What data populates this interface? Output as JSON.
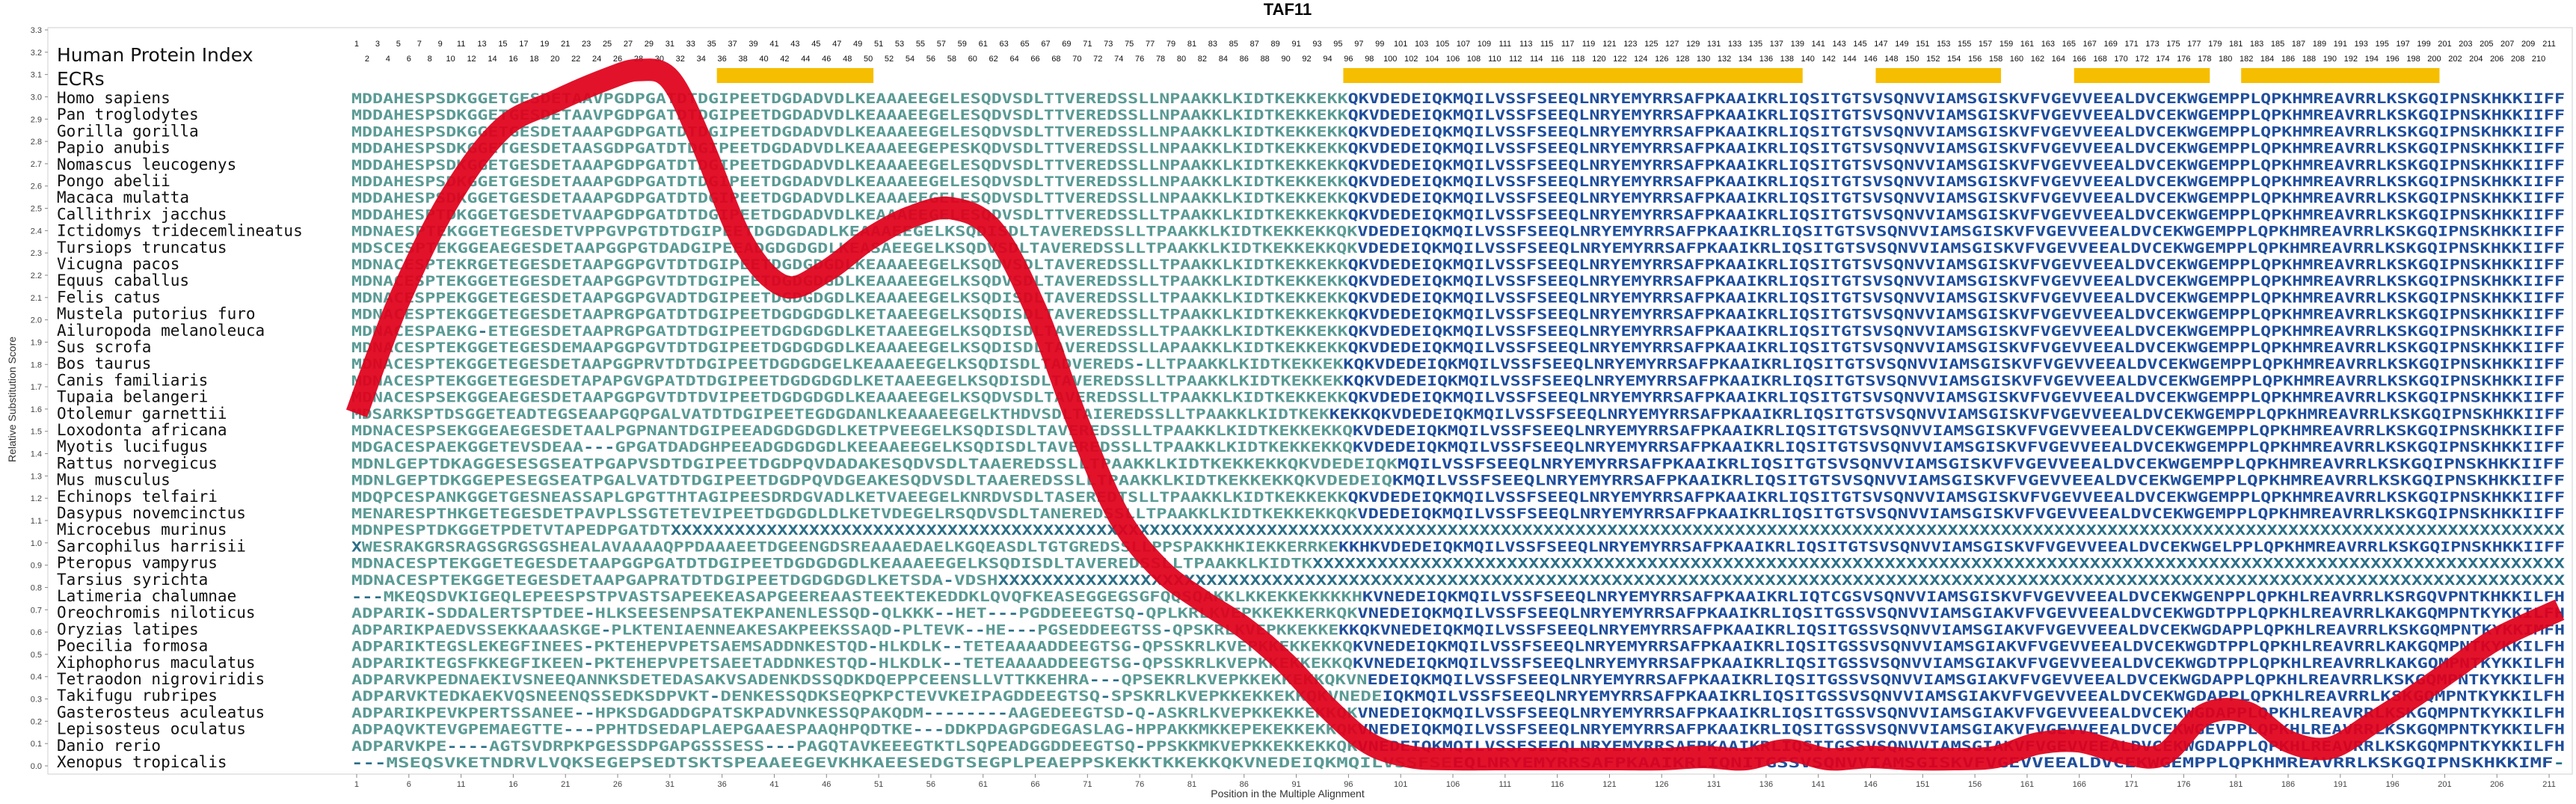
{
  "chart_data": {
    "type": "line",
    "title": "TAF11",
    "xlabel": "Position in the Multiple Alignment",
    "ylabel": "Relative Substitution Score",
    "xlim": [
      1,
      212
    ],
    "ylim": [
      0.0,
      3.3
    ],
    "x_ticks": [
      "1",
      "6",
      "11",
      "16",
      "21",
      "26",
      "31",
      "36",
      "41",
      "46",
      "51",
      "56",
      "61",
      "66",
      "71",
      "76",
      "81",
      "86",
      "91",
      "96",
      "101",
      "106",
      "111",
      "116",
      "121",
      "126",
      "131",
      "136",
      "141",
      "146",
      "151",
      "156",
      "161",
      "166",
      "171",
      "176",
      "181",
      "186",
      "191",
      "196",
      "201",
      "206",
      "211"
    ],
    "y_ticks": [
      "0.0",
      "0.1",
      "0.2",
      "0.3",
      "0.4",
      "0.5",
      "0.6",
      "0.7",
      "0.8",
      "0.9",
      "1.0",
      "1.1",
      "1.2",
      "1.3",
      "1.4",
      "1.5",
      "1.6",
      "1.7",
      "1.8",
      "1.9",
      "2.0",
      "2.1",
      "2.2",
      "2.3",
      "2.4",
      "2.5",
      "2.6",
      "2.7",
      "2.8",
      "2.9",
      "3.0",
      "3.1",
      "3.2",
      "3.3"
    ],
    "grid": false,
    "line_color": "#e0001b",
    "series": [
      {
        "x": [
          1,
          5,
          10,
          15,
          20,
          25,
          28,
          31,
          34,
          38,
          42,
          46,
          50,
          54,
          58,
          62,
          66,
          70,
          74,
          78,
          82,
          86,
          90,
          94,
          98,
          102,
          106,
          110,
          114,
          118,
          122,
          126,
          130,
          134,
          138,
          142,
          146,
          150,
          154,
          158,
          162,
          166,
          170,
          174,
          178,
          182,
          186,
          190,
          194,
          198,
          202,
          206,
          212
        ],
        "y": [
          1.58,
          2.08,
          2.55,
          2.86,
          2.98,
          3.08,
          3.12,
          3.08,
          2.8,
          2.35,
          2.15,
          2.22,
          2.36,
          2.46,
          2.5,
          2.4,
          2.05,
          1.55,
          1.12,
          0.88,
          0.74,
          0.62,
          0.46,
          0.26,
          0.1,
          0.04,
          0.03,
          0.03,
          0.03,
          0.03,
          0.03,
          0.03,
          0.04,
          0.03,
          0.07,
          0.03,
          0.04,
          0.03,
          0.03,
          0.04,
          0.1,
          0.11,
          0.06,
          0.05,
          0.23,
          0.24,
          0.11,
          0.08,
          0.19,
          0.31,
          0.44,
          0.57,
          0.7
        ]
      }
    ],
    "human_protein_index_row1": [
      "1",
      "3",
      "5",
      "7",
      "9",
      "11",
      "13",
      "15",
      "17",
      "19",
      "21",
      "23",
      "25",
      "27",
      "29",
      "31",
      "33",
      "35",
      "37",
      "39",
      "41",
      "43",
      "45",
      "47",
      "49",
      "51",
      "53",
      "55",
      "57",
      "59",
      "61",
      "63",
      "65",
      "67",
      "69",
      "71",
      "73",
      "75",
      "77",
      "79",
      "81",
      "83",
      "85",
      "87",
      "89",
      "91",
      "93",
      "95",
      "97",
      "99",
      "101",
      "103",
      "105",
      "107",
      "109",
      "111",
      "113",
      "115",
      "117",
      "119",
      "121",
      "123",
      "125",
      "127",
      "129",
      "131",
      "133",
      "135",
      "137",
      "139",
      "141",
      "143",
      "145",
      "147",
      "149",
      "151",
      "153",
      "155",
      "157",
      "159",
      "161",
      "163",
      "165",
      "167",
      "169",
      "171",
      "173",
      "175",
      "177",
      "179",
      "181",
      "183",
      "185",
      "187",
      "189",
      "191",
      "193",
      "195",
      "197",
      "199",
      "201",
      "203",
      "205",
      "207",
      "209",
      "211"
    ],
    "human_protein_index_row2": [
      "2",
      "4",
      "6",
      "8",
      "10",
      "12",
      "14",
      "16",
      "18",
      "20",
      "22",
      "24",
      "26",
      "28",
      "30",
      "32",
      "34",
      "36",
      "38",
      "40",
      "42",
      "44",
      "46",
      "48",
      "50",
      "52",
      "54",
      "56",
      "58",
      "60",
      "62",
      "64",
      "66",
      "68",
      "70",
      "72",
      "74",
      "76",
      "78",
      "80",
      "82",
      "84",
      "86",
      "88",
      "90",
      "92",
      "94",
      "96",
      "98",
      "100",
      "102",
      "104",
      "106",
      "108",
      "110",
      "112",
      "114",
      "116",
      "118",
      "120",
      "122",
      "124",
      "126",
      "128",
      "130",
      "132",
      "134",
      "136",
      "138",
      "140",
      "142",
      "144",
      "146",
      "148",
      "150",
      "152",
      "154",
      "156",
      "158",
      "160",
      "162",
      "164",
      "166",
      "168",
      "170",
      "172",
      "174",
      "176",
      "178",
      "180",
      "182",
      "184",
      "186",
      "188",
      "190",
      "192",
      "194",
      "196",
      "198",
      "200",
      "202",
      "204",
      "206",
      "208",
      "210"
    ],
    "ecr_regions": [
      [
        36,
        50
      ],
      [
        96,
        139
      ],
      [
        147,
        158
      ],
      [
        166,
        178
      ],
      [
        182,
        200
      ]
    ],
    "ecr_color": "#f6be00",
    "sequence_colors": {
      "conserved": "#1f4e9c",
      "variable": "#5a9a94",
      "gap": "#2b6f88"
    }
  },
  "labels": {
    "human_protein_index": "Human Protein Index",
    "ecrs": "ECRs"
  },
  "alignment": [
    {
      "species": "Homo sapiens",
      "seq": "MDDAHESPSDKGGETGESDETAAVPGDPGATDTDGIPEETDGDADVDLKEAAAEEGELESQDVSDLTTVEREDSSLLNPAAKKLKIDTKEKKEKKQKVDEDEIQKMQILVSSFSEEQLNRYEMYRRSAFPKAAIKRLIQSITGTSVSQNVVIAMSGISKVFVGEVVEEALDVCEKWGEMPPLQPKHMREAVRRLKSKGQIPNSKHKKIIFF"
    },
    {
      "species": "Pan troglodytes",
      "seq": "MDDAHESPSDKGGETGESDETAAVPGDPGATDTDGIPEETDGDADVDLKEAAAEEGELESQDVSDLTTVEREDSSLLNPAAKKLKIDTKEKKEKKQKVDEDEIQKMQILVSSFSEEQLNRYEMYRRSAFPKAAIKRLIQSITGTSVSQNVVIAMSGISKVFVGEVVEEALDVCEKWGEMPPLQPKHMREAVRRLKSKGQIPNSKHKKIIFF"
    },
    {
      "species": "Gorilla gorilla",
      "seq": "MDDAHESPSDKGGETGESDETAAAPGDPGATDTDGIPEETDGDADVDLKEAAAEEGELESQDVSDLTTVEREDSSLLNPAAKKLKIDTKEKKEKKQKVDEDEIQKMQILVSSFSEEQLNRYEMYRRSAFPKAAIKRLIQSITGTSVSQNVVIAMSGISKVFVGEVVEEALDVCEKWGEMPPLQPKHMREAVRRLKSKGQIPNSKHKKIIFF"
    },
    {
      "species": "Papio anubis",
      "seq": "MDDAHESPSDKGGETGESDETAASGDPGATDTDGIPEETDGDADVDLKEAAAEEGEPESKQDVSDLTTVEREDSSLLNPAAKKLKIDTKEKKEKKQKVDEDEIQKMQILVSSFSEEQLNRYEMYRRSAFPKAAIKRLIQSITGTSVSQNVVIAMSGISKVFVGEVVEEALDVCEKWGEMPPLQPKHMREAVRRLKSKGQIPNSKHKKIIFF"
    },
    {
      "species": "Nomascus leucogenys",
      "seq": "MDDAHESPSDKGGETGESDETAAAPGDPGATDTDGIPEETDGDADVDLKEAAAEEGELESQDVSDLTTVEREDSSLLNPAAKKLKIDTKEKKEKKQKVDEDEIQKMQILVSSFSEEQLNRYEMYRRSAFPKAAIKRLIQSITGTSVSQNVVIAMSGISKVFVGEVVEEALDVCEKWGEMPPLQPKHMREAVRRLKSKGQIPNSKHKKIIFF"
    },
    {
      "species": "Pongo abelii",
      "seq": "MDDAHESPSDKGGETGESDETAAAPGDPGATDTDGIPEETDGDADVDLKEAAAEEGELESQDVSDLTTVEREDSSLLNPAAKKLKIDTKEKKEKKQKVDEDEIQKMQILVSSFSEEQLNRYEMYRRSAFPKAAIKRLIQSITGTSVSQNVVIAMSGISKVFVGEVVEEALDVCEKWGEMPPLQPKHMREAVRRLKSKGQIPNSKHKKIIFF"
    },
    {
      "species": "Macaca mulatta",
      "seq": "MDDAHESPSDKGGETGESDETAAAPGDPGATDTDGIPEETDGDADVDLKEAAAEEGELESQDVSDLTTVEREDSSLLNPAAKKLKIDTKEKKEKKQKVDEDEIQKMQILVSSFSEEQLNRYEMYRRSAFPKAAIKRLIQSITGTSVSQNVVIAMSGISKVFVGEVVEEALDVCEKWGEMPPLQPKHMREAVRRLKSKGQIPNSKHKKIIFF"
    },
    {
      "species": "Callithrix jacchus",
      "seq": "MDDAHESPTDKGGETGESDETVAAPGDPGATDTDGIPEETDGDADVDLKEAAAEEGELESQDVSDLTTVEREDSSLLTPAAKKLKIDTKEKKEKKQKVDEDEIQKMQILVSSFSEEQLNRYEMYRRSAFPKAAIKRLIQSITGTSVSQNVVIAMSGISKVFVGEVVEEALDVCEKWGEMPPLQPKHMREAVRRLKSKGQIPNSKHKKIIFF"
    },
    {
      "species": "Ictidomys tridecemlineatus",
      "seq": "MDNAESPTEKGGETEGESDETVPPGVPGTDTDGIPEETDGDGDADLKEAAAEEGELKSQDISDLTAVEREDSSLLTPAAKKLKIDTKEKKEKKQKVDEDEIQKMQILVSSFSEEQLNRYEMYRRSAFPKAAIKRLIQSITGTSVSQNVVIAMSGISKVFVGEVVEEALDVCEKWGEMPPLQPKHMREAVRRLKSKGQIPNSKHKKIIFF"
    },
    {
      "species": "Tursiops truncatus",
      "seq": "MDSCESPTEKGGEAEGESDETAAPGGPGTDADGIPEEADGDGDGDLKEASAEEGELKSQDVSDLTAVEREDSSLLTPAAKKLKIDTKEKKEKKQKVDEDEIQKMQILVSSFSEEQLNRYEMYRRSAFPKAAIKRLIQSITGTSVSQNVVIAMSGISKVFVGEVVEEALDVCEKWGEMPPLQPKHMREAVRRLKSKGQIPNSKHKKIIFF"
    },
    {
      "species": "Vicugna pacos",
      "seq": "MDNACESPTEKRGETEGESDETAAPGGPGVTDTDGIPEETDGDGDGDLKEAAAEEGELKSQDVSDLTAVEREDSSLLTPAAKKLKIDTKEKKEKKQKVDEDEIQKMQILVSSFSEEQLNRYEMYRRSAFPKAAIKRLIQSITGTSVSQNVVIAMSGISKVFVGEVVEEALDVCEKWGEMPPLQPKHMREAVRRLKSKGQIPNSKHKKIIFF"
    },
    {
      "species": "Equus caballus",
      "seq": "MDNACESPTEKGGETEGESDETAAPGGPGVTDTDGIPEETDGDGDGDLKEAAAEEGELKSQDVSDLTAVEREDSSLLTPAAKKLKIDTKEKKEKKQKVDEDEIQKMQILVSSFSEEQLNRYEMYRRSAFPKAAIKRLIQSITGTSVSQNVVIAMSGISKVFVGEVVEEALDVCEKWGEMPPLQPKHMREAVRRLKSKGQIPNSKHKKIIFF"
    },
    {
      "species": "Felis catus",
      "seq": "MDNACESPPEKGGETEGESDETAAPGGPGVADTDGIPEETDGDGDGDLKEAAAEEGELKSQDISDLTAVEREDSSLLTPAAKKLKIDTKEKKEKKQKVDEDEIQKMQILVSSFSEEQLNRYEMYRRSAFPKAAIKRLIQSITGTSVSQNVVIAMSGISKVFVGEVVEEALDVCEKWGEMPPLQPKHMREAVRRLKSKGQIPNSKHKKIIFF"
    },
    {
      "species": "Mustela putorius furo",
      "seq": "MDNACESPTEKGGETEGESDETAAPRGPGATDTDGIPEETDGDGDGDLKETAAEEGELKSQDISDLTAVEREDSSLLTPAAKKLKIDTKEKKEKKQKVDEDEIQKMQILVSSFSEEQLNRYEMYRRSAFPKAAIKRLIQSITGTSVSQNVVIAMSGISKVFVGEVVEEALDVCEKWGEMPPLQPKHMREAVRRLKSKGQIPNSKHKKIIFF"
    },
    {
      "species": "Ailuropoda melanoleuca",
      "seq": "MDNACESPAEKG-ETEGESDETAAPRGPGATDTDGIPEETDGDGDGDLKETAAEEGELKSQDISDLTAVEREDSSLLTPAAKKLKIDTKEKKEKKQKVDEDEIQKMQILVSSFSEEQLNRYEMYRRSAFPKAAIKRLIQSITGTSVSQNVVIAMSGISKVFVGEVVEEALDVCEKWGEMPPLQPKHMREAVRRLKSKGQIPNSKHKKIIFF"
    },
    {
      "species": "Sus scrofa",
      "seq": "MDNACESPTEKGGETEGESDEMAAPGGPGVTDTDGIPEETDGDGDGDLKEAAAEEGELKSQDISDLTAVEREDSSLLAPAAKKLKIDTKEKKEKKQKVDEDEIQKMQILVSSFSEEQLNRYEMYRRSAFPKAAIKRLIQSITGTSVSQNVVIAMSGISKVFVGEVVEEALDVCEKWGEMPPLQPKHMREAVRRLKSKGQIPNSKHKKIIFF"
    },
    {
      "species": "Bos taurus",
      "seq": "MDNACESPTEKGGETEGESDETAAPGGPRVTDTDGIPEETDGDGDGELKEAAAEEGELKSQDISDLTADVEREDS-LLTPAAKKLKIDTKEKKEKKQKVDEDEIQKMQILVSSFSEEQLNRYEMYRRSAFPKAAIKRLIQSITGTSVSQNVVIAMSGISKVFVGEVVEEALDVCEKWGEMPPLQPKHMREAVRRLKSKGQIPNSKHKKIIFF"
    },
    {
      "species": "Canis familiaris",
      "seq": "MDNACESPTEKGGETEGESDETAPAPGVGPATDTDGIPEETDGDGDGDLKETAAEEGELKSQDISDLTAVEREDSSLLTPAAKKLKIDTKEKKEKKQKVDEDEIQKMQILVSSFSEEQLNRYEMYRRSAFPKAAIKRLIQSITGTSVSQNVVIAMSGISKVFVGEVVEEALDVCEKWGEMPPLQPKHMREAVRRLKSKGQIPNSKHKKIIFF"
    },
    {
      "species": "Tupaia belangeri",
      "seq": "MDNACESPSEKGGEAEGESDETAAPGGPGVTDTDVIPEETDGDGDGDLKEAAAEEGELKSQDVSDLTAVEREDSSLLTPAAKKLKIDTKEKKEKKQKVDEDEIQKMQILVSSFSEEQLNRYEMYRRSAFPKAAIKRLIQSITGTSVSQNVVIAMSGISKVFVGEVVEEALDVCEKWGEMPPLQPKHMREAVRRLKSKGQIPNSKHKKIIFF"
    },
    {
      "species": "Otolemur garnettii",
      "seq": "MDSARKSPTDSGGETEADTEGSEAAPGQPGALVATDTDGIPEETEGDGDANLKEAAAEEGELKTHDVSDLTAIEREDSSLLTPAAKKLKIDTKEKKEKKQKVDEDEIQKMQILVSSFSEEQLNRYEMYRRSAFPKAAIKRLIQSITGTSVSQNVVIAMSGISKVFVGEVVEEALDVCEKWGEMPPLQPKHMREAVRRLKSKGQIPNSKHKKIIFF"
    },
    {
      "species": "Loxodonta africana",
      "seq": "MDNACESPSEKGGEAEGESDETAALPGPNANTDGIPEEADGDGDGDLKETPVEEGELKSQDISDLTAVEREDSSLLTPAAKKLKIDTKEKKEKKQKVDEDEIQKMQILVSSFSEEQLNRYEMYRRSAFPKAAIKRLIQSITGTSVSQNVVIAMSGISKVFVGEVVEEALDVCEKWGEMPPLQPKHMREAVRRLKSKGQIPNSKHKKIIFF"
    },
    {
      "species": "Myotis lucifugus",
      "seq": "MDGACESPAEKGGETEVSDEAA---GPGATDADGHPEEADGDGDGDLKEEAAEEGELKSQDISDLTAVEREDSSLLTPAAKKLKIDTKEKKEKKQKVDEDEIQKMQILVSSFSEEQLNRYEMYRRSAFPKAAIKRLIQSITGTSVSQNVVIAMSGISKVFVGEVVEEALDVCEKWGEMPPLQPKHMREAVRRLKSKGQIPNSKHKKIIFF"
    },
    {
      "species": "Rattus norvegicus",
      "seq": "MDNLGEPTDKAGGESESGSEATPGAPVSDTDGIPEETDGDPQVDADAKESQDVSDLTAAEREDSSLLTPAAKKLKIDTKEKKEKKQKVDEDEIQKMQILVSSFSEEQLNRYEMYRRSAFPKAAIKRLIQSITGTSVSQNVVIAMSGISKVFVGEVVEEALDVCEKWGEMPPLQPKHMREAVRRLKSKGQIPNSKHKKIIFF"
    },
    {
      "species": "Mus musculus",
      "seq": "MDNLGEPTDKGGEPESEGSEATPGALVATDTDGIPEETDGDPQVDGEAKESQDVSDLTAAEREDSSLLTPAAKKLKIDTKEKKEKKQKVDEDEIQKMQILVSSFSEEQLNRYEMYRRSAFPKAAIKRLIQSITGTSVSQNVVIAMSGISKVFVGEVVEEALDVCEKWGEMPPLQPKHMREAVRRLKSKGQIPNSKHKKIIFF"
    },
    {
      "species": "Echinops telfairi",
      "seq": "MDQPCESPANKGGETGESNEASSAPLGPGTTHTAGIPEESDRDGVADLKETVAEEGELKNRDVSDLTASEREDTSLLTPAAKKLKIDTKEKKEKKQKVDEDEIQKMQILVSSFSEEQLNRYEMYRRSAFPKAAIKRLIQSITGTSVSQNVVIAMSGISKVFVGEVVEEALDVCEKWGEMPPLQPKHMREAVRRLKSKGQIPNSKHKKIIFF"
    },
    {
      "species": "Dasypus novemcinctus",
      "seq": "MENARESPTHKGETEGESDETPAVPLSSGTETEVIPEETDGDGDLDLKETVDEGELRSQDVSDLTANEREDSSLLTPAAKKLKIDTKEKKEKKQKVDEDEIQKMQILVSSFSEEQLNRYEMYRRSAFPKAAIKRLIQSITGTSVSQNVVIAMSGISKVFVGEVVEEALDVCEKWGEMPPLQPKHMREAVRRLKSKGQIPNSKHKKIIFF"
    },
    {
      "species": "Microcebus murinus",
      "seq": "MDNPESPTDKGGETPDETVTAPEDPGATDTXXXXXXXXXXXXXXXXXXXXXXXXXXXXXXXXXXXXXXXXXXXXXXXXXXXXXXXXXXXXXXXXXXXXXXXXXXXXXXXXXXXXXXXXXXXXXXXXXXXXXXXXXXXXXXXXXXXXXXXXXXXXXXXXXXXXXXXXXXXXXXXXXXXXXXXXXXXXXXXXXXXXXXXXXXXXXXXXXX"
    },
    {
      "species": "Sarcophilus harrisii",
      "seq": "XWESRAKGRSRAGSGRGSGSHEALAVAAAAQPPDAAAEETDGEENGDSREAAAEDAELKGQEASDLTGTGREDSSLLPPSPAKKHKIEKKERRKEKKHKVDEDEIQKMQILVSSFSEEQLNRYEMYRRSAFPKAAIKRLIQSITGTSVSQNVVIAMSGISKVFVGEVVEEALDVCEKWGELPPLQPKHMREAVRRLKSKGQIPNSKHKKIIFF"
    },
    {
      "species": "Pteropus vampyrus",
      "seq": "MDNACESPTEKGGETEGESDETAAPGGPGATDTDGIPEETDGDGDGDLKEAAAEEGELKSQDISDLTAVEREDSSLLTPAAKKLKIDTKXXXXXXXXXXXXXXXXXXXXXXXXXXXXXXXXXXXXXXXXXXXXXXXXXXXXXXXXXXXXXXXXXXXXXXXXXXXXXXXXXXXXXXXXXXXXXXXXXXXXXXXXXXXXXXXXXXXX"
    },
    {
      "species": "Tarsius syrichta",
      "seq": "MDNACESPTEKGGETEGESDETAAPGAPRATDTDGIPEETDGDGDGDLKETSDA-VDSHXXXXXXXXXXXXXXXXXXXXXXXXXXXXXXXXXXXXXXXXXXXXXXXXXXXXXXXXXXXXXXXXXXXXXXXXXXXXXXXXXXXXXXXXXXXXXXXXXXXXXXXXXXXXXXXXXXXXXXXXXXXXXXXXXXXXXXXXXXXXXXX"
    },
    {
      "species": "Latimeria chalumnae",
      "seq": "---MKEQSDVKIGEQLEPEESPSTPVASTSAPEEKEASAPGEEREAASTEEKTEKEDDKLQVQFKEASEGGEGSGFQQSQAKKLKKEKKEKKKKHKVNEDEIQKMQILVSSFSEEQLNRYEMYRRSAFPKAAIKRLIQTCGSVSQNVVIAMSGISKVFVGEVVEEALDVCEKWGENPPLQPKHLREAVRRLKSRGQVPNTKHKKILFH"
    },
    {
      "species": "Oreochromis niloticus",
      "seq": "ADPARIK-SDDALERTSPTDEE-HLKSEESENPSATEKPANENLESSQD-QLKKK--HET---PGDDEEEGTSQ-QPLKRLKVEPKKEKKERKQKVNEDEIQKMQILVSSFSEEQLNRYEMYRRSAFPKAAIKRLIQSITGSSVSQNVVIAMSGIAKVFVGEVVEEALDVCEKWGDTPPLQPKHLREAVRRLKAKGQMPNTKYKKILFH"
    },
    {
      "species": "Oryzias latipes",
      "seq": "ADPARIKPAEDVSSEKKAAASKGE-PLKTENIAENNEAKESAKPEEKSSAQD-PLTEVK--HE---PGSEDDEEGTSS-QPSKRLKVEPKKEKKEKKQKVNEDEIQKMQILVSSFSEEQLNRYEMYRRSAFPKAAIKRLIQSITGSSVSQNVVIAMSGIAKVFVGEVVEEALDVCEKWGDAPPLQPKHLREAVRRLKSKGQMPNTKYKKIMFH"
    },
    {
      "species": "Poecilia formosa",
      "seq": "ADPARIKTEGSLEKEGFINEES-PKTEHEPVPETSAEMSADDNKESTQD-HLKDLK--TETEAAAADDEEGTSG-QPSSKRLKVEPKKEKKEKKQKVNEDEIQKMQILVSSFSEEQLNRYEMYRRSAFPKAAIKRLIQSITGSSVSQNVVIAMSGIAKVFVGEVVEEALDVCEKWGDTPPLQPKHLREAVRRLKAKGQMPNTKYKKILFH"
    },
    {
      "species": "Xiphophorus maculatus",
      "seq": "ADPARIKTEGSFKKEGFIKEEN-PKTEHEPVPETSAEETADDNKESTQD-HLKDLK--TETEAAAADDEEGTSG-QPSSKRLKVEPKKEKKEKKQKVNEDEIQKMQILVSSFSEEQLNRYEMYRRSAFPKAAIKRLIQSITGSSVSQNVVIAMSGIAKVFVGEVVEEALDVCEKWGDTPPLQPKHLREAVRRLKAKGQMPNTKYKKILFH"
    },
    {
      "species": "Tetraodon nigroviridis",
      "seq": "ADPARVKPEDNAEKIVSNEEQANNKSDETEDASAKVSADENKDSSQDKDQEPPCEENSLLVTTKKEHRA---QPSEKRLKVEPKKEKKEKKQKVNEDEIQKMQILVSSFSEEQLNRYEMYRRSAFPKAAIKRLIQSITGSSVSQNVVIAMSGIAKVFVGEVVEEALDVCEKWGDAPPLQPKHLREAVRRLKSKGQMPNTKYKKILFH"
    },
    {
      "species": "Takifugu rubripes",
      "seq": "ADPARVKTEDKAEKVQSNEENQSSEDKSDPVKT-DENKESSQDKSEQPKPCTEVVKEIPAGDDEEGTSQ-SPSKRLKVEPKKEKKEKKQKVNEDEIQKMQILVSSFSEEQLNRYEMYRRSAFPKAAIKRLIQSITGSSVSQNVVIAMSGIAKVFVGEVVEEALDVCEKWGDAPPLQPKHLREAVRRLKSKGQMPNTKYKKILFH"
    },
    {
      "species": "Gasterosteus aculeatus",
      "seq": "ADPARIKPEVKPERTSSANEE--HPKSDGADDGPATSKPADVNKESSQPAKQDM--------AAGEDEEGTSD-Q-ASKRLKVEPKKEKKEKKQKVNEDEIQKMQILVSSFSEEQLNRYEMYRRSAFPKAAIKRLIQSITGSSVSQNVVIAMSGIAKVFVGEVVEEALDVCEKWGDAPPLQPKHLREAVRRLKSKGQMPNTKYKKILFH"
    },
    {
      "species": "Lepisosteus oculatus",
      "seq": "ADPAQVKTEVGPEMAEGTTE---PPHTDSEDAPLAEPGAAESPAAQHPQDTKE---DDKPDAGPGDEGASLAG-HPPAKKMKKEPEKEKKEKKQKVNEDEIQKMQILVSSFSEEQLNRYEMYRRSAFPKAAIKRLIQSITGSSVSQNVVIAMSGIAKVFVGEVVEEALDVCEKWGEVPPLQPKHLREAVRRLKSKGQMPNTKYKKILFH"
    },
    {
      "species": "Danio rerio",
      "seq": "ADPARVKPE----AGTSVDRPKPGESSDPGAPGSSSESS---PAGQTAVKEEEGTKTLSQPEADGGDDEEGTSQ-PPSKKMKVEPKKEKKEKKQKVNEDEIQKMQILVSSFSEEQLNRYEMYRRSAFPKAAIKRLIQSITGSSVSQNVVIAMSGIAKVFVGEVVEEALDVCEKWGDAPPLQPKHLREAVRRLKSKGQMPNTKYKKILFH"
    },
    {
      "species": "Xenopus tropicalis",
      "seq": "---MSEQSVKETNDRVLVQKSEGEPSEDTSKTSPEAAEEGEVKHKAEESEDGTSEGPLPEAEPPSKEKKTKKEKKQKVNEDEIQKMQILVSSFSEEQLNRYEMYRRSAFPKAAIKRLIQNITGSSVSQNVVIAMSGISKVFVGEVVEEALDVCEKWGEMPPLQPKHMREAVRRLKSKGQIPNSKHKKIMF-"
    }
  ]
}
